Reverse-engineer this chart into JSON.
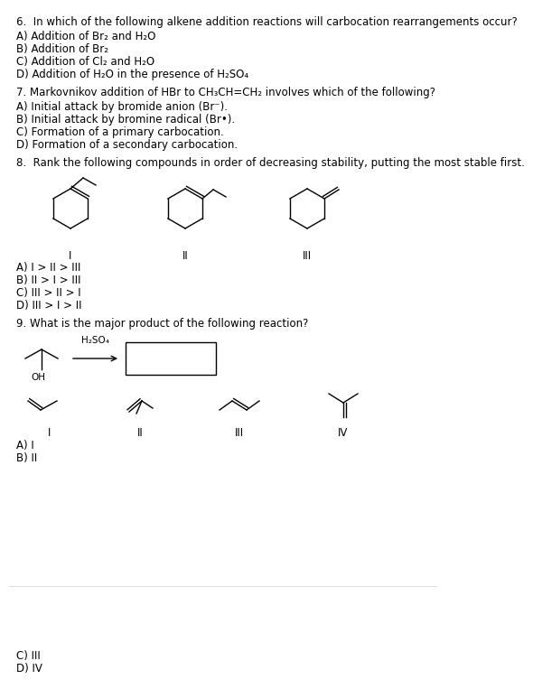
{
  "bg_color": "#ffffff",
  "text_color": "#000000",
  "q6_text": "6.  In which of the following alkene addition reactions will carbocation rearrangements occur?",
  "q6_a": "A) Addition of Br₂ and H₂O",
  "q6_b": "B) Addition of Br₂",
  "q6_c": "C) Addition of Cl₂ and H₂O",
  "q6_d": "D) Addition of H₂O in the presence of H₂SO₄",
  "q7_text": "7. Markovnikov addition of HBr to CH₃CH=CH₂ involves which of the following?",
  "q7_a": "A) Initial attack by bromide anion (Br⁻).",
  "q7_b": "B) Initial attack by bromine radical (Br•).",
  "q7_c": "C) Formation of a primary carbocation.",
  "q7_d": "D) Formation of a secondary carbocation.",
  "q8_text": "8.  Rank the following compounds in order of decreasing stability, putting the most stable first.",
  "q8_a": "A) I > II > III",
  "q8_b": "B) II > I > III",
  "q8_c": "C) III > II > I",
  "q8_d": "D) III > I > II",
  "q9_text": "9. What is the major product of the following reaction?",
  "q9_a": "A) I",
  "q9_b": "B) II",
  "bottom_c": "C) III",
  "bottom_d": "D) IV",
  "font_size": 8.5,
  "label_I": "I",
  "label_II": "II",
  "label_III": "III",
  "label_IV": "IV",
  "h2so4": "H₂SO₄",
  "oh_label": "OH"
}
